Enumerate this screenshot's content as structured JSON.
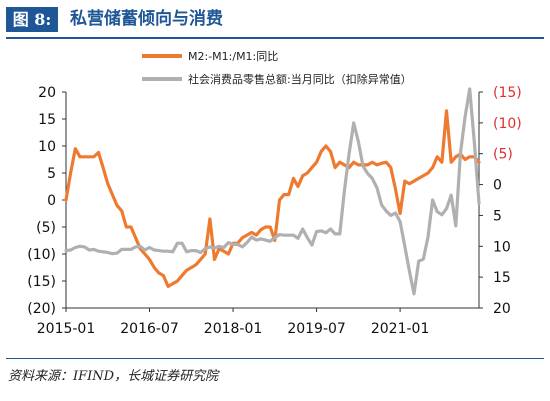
{
  "header": {
    "figure_label": "图 8:",
    "title": "私营储蓄倾向与消费"
  },
  "footer": {
    "source": "资料来源：IFIND，长城证券研究院"
  },
  "colors": {
    "brand": "#1f5796",
    "series_orange": "#ee7a30",
    "series_gray": "#b0b0b0",
    "negative_tick": "#e03030",
    "positive_tick": "#111111"
  },
  "chart_data": {
    "type": "line",
    "legend": [
      "M2:-M1:/M1:同比",
      "社会消费品零售总额:当月同比（扣除异常值）"
    ],
    "x_ticks": [
      "2015-01",
      "2016-07",
      "2018-01",
      "2019-07",
      "2021-01"
    ],
    "x_range": [
      "2015-01",
      "2022-06"
    ],
    "left_axis": {
      "ticks": [
        "20",
        "15",
        "10",
        "5",
        "0",
        "(5)",
        "(10)",
        "(15)",
        "(20)"
      ],
      "range": [
        -20,
        20
      ]
    },
    "right_axis": {
      "ticks": [
        "(15)",
        "(10)",
        "(5)",
        "0",
        "5",
        "10",
        "15",
        "20"
      ],
      "range": [
        -15,
        20
      ],
      "inverted": true
    },
    "series": [
      {
        "name": "M2:-M1:/M1:同比",
        "axis": "left",
        "points": [
          [
            "2015-01",
            0
          ],
          [
            "2015-02",
            5
          ],
          [
            "2015-03",
            9.5
          ],
          [
            "2015-04",
            8
          ],
          [
            "2015-05",
            8
          ],
          [
            "2015-06",
            8
          ],
          [
            "2015-07",
            8
          ],
          [
            "2015-08",
            8.8
          ],
          [
            "2015-09",
            6
          ],
          [
            "2015-10",
            3
          ],
          [
            "2015-11",
            1
          ],
          [
            "2015-12",
            -1
          ],
          [
            "2016-01",
            -2
          ],
          [
            "2016-02",
            -5
          ],
          [
            "2016-03",
            -5
          ],
          [
            "2016-04",
            -7
          ],
          [
            "2016-05",
            -9
          ],
          [
            "2016-06",
            -10
          ],
          [
            "2016-07",
            -11
          ],
          [
            "2016-08",
            -12.5
          ],
          [
            "2016-09",
            -13.5
          ],
          [
            "2016-10",
            -14
          ],
          [
            "2016-11",
            -16
          ],
          [
            "2016-12",
            -15.5
          ],
          [
            "2017-01",
            -15
          ],
          [
            "2017-02",
            -14
          ],
          [
            "2017-03",
            -13
          ],
          [
            "2017-04",
            -12.5
          ],
          [
            "2017-05",
            -12
          ],
          [
            "2017-06",
            -11
          ],
          [
            "2017-07",
            -10
          ],
          [
            "2017-08",
            -3.5
          ],
          [
            "2017-09",
            -11
          ],
          [
            "2017-10",
            -9
          ],
          [
            "2017-11",
            -9.5
          ],
          [
            "2017-12",
            -10
          ],
          [
            "2018-01",
            -8
          ],
          [
            "2018-02",
            -8
          ],
          [
            "2018-03",
            -7
          ],
          [
            "2018-04",
            -6.5
          ],
          [
            "2018-05",
            -6
          ],
          [
            "2018-06",
            -6.5
          ],
          [
            "2018-07",
            -5.5
          ],
          [
            "2018-08",
            -5
          ],
          [
            "2018-09",
            -5
          ],
          [
            "2018-10",
            -7.5
          ],
          [
            "2018-11",
            0
          ],
          [
            "2018-12",
            1
          ],
          [
            "2019-01",
            1
          ],
          [
            "2019-02",
            4
          ],
          [
            "2019-03",
            2.5
          ],
          [
            "2019-04",
            4.5
          ],
          [
            "2019-05",
            5
          ],
          [
            "2019-06",
            6
          ],
          [
            "2019-07",
            7
          ],
          [
            "2019-08",
            9
          ],
          [
            "2019-09",
            10
          ],
          [
            "2019-10",
            9
          ],
          [
            "2019-11",
            6
          ],
          [
            "2019-12",
            7
          ],
          [
            "2020-01",
            6.5
          ],
          [
            "2020-02",
            6
          ],
          [
            "2020-03",
            7
          ],
          [
            "2020-04",
            6.5
          ],
          [
            "2020-05",
            6.5
          ],
          [
            "2020-06",
            6.5
          ],
          [
            "2020-07",
            7
          ],
          [
            "2020-08",
            6.5
          ],
          [
            "2020-09",
            6.8
          ],
          [
            "2020-10",
            7
          ],
          [
            "2020-11",
            6
          ],
          [
            "2020-12",
            2
          ],
          [
            "2021-01",
            -2.5
          ],
          [
            "2021-02",
            3.5
          ],
          [
            "2021-03",
            3
          ],
          [
            "2021-04",
            3.5
          ],
          [
            "2021-05",
            4
          ],
          [
            "2021-06",
            4.5
          ],
          [
            "2021-07",
            5
          ],
          [
            "2021-08",
            6
          ],
          [
            "2021-09",
            8
          ],
          [
            "2021-10",
            7
          ],
          [
            "2021-11",
            16.5
          ],
          [
            "2021-12",
            7
          ],
          [
            "2022-01",
            8
          ],
          [
            "2022-02",
            8.5
          ],
          [
            "2022-03",
            7.5
          ],
          [
            "2022-04",
            8
          ],
          [
            "2022-05",
            8
          ],
          [
            "2022-06",
            7
          ]
        ]
      },
      {
        "name": "社会消费品零售总额:当月同比（扣除异常值）",
        "axis": "right",
        "points": [
          [
            "2015-01",
            10.7
          ],
          [
            "2015-02",
            10.6
          ],
          [
            "2015-03",
            10.2
          ],
          [
            "2015-04",
            10
          ],
          [
            "2015-05",
            10.1
          ],
          [
            "2015-06",
            10.6
          ],
          [
            "2015-07",
            10.5
          ],
          [
            "2015-08",
            10.8
          ],
          [
            "2015-09",
            10.9
          ],
          [
            "2015-10",
            11
          ],
          [
            "2015-11",
            11.2
          ],
          [
            "2015-12",
            11.1
          ],
          [
            "2016-01",
            10.5
          ],
          [
            "2016-02",
            10.5
          ],
          [
            "2016-03",
            10.5
          ],
          [
            "2016-04",
            10.1
          ],
          [
            "2016-05",
            10
          ],
          [
            "2016-06",
            10.6
          ],
          [
            "2016-07",
            10.2
          ],
          [
            "2016-08",
            10.6
          ],
          [
            "2016-09",
            10.7
          ],
          [
            "2016-10",
            10.8
          ],
          [
            "2016-11",
            10.8
          ],
          [
            "2016-12",
            10.9
          ],
          [
            "2017-01",
            9.5
          ],
          [
            "2017-02",
            9.5
          ],
          [
            "2017-03",
            10.9
          ],
          [
            "2017-04",
            10.7
          ],
          [
            "2017-05",
            10.7
          ],
          [
            "2017-06",
            11
          ],
          [
            "2017-07",
            10.4
          ],
          [
            "2017-08",
            10.1
          ],
          [
            "2017-09",
            10.3
          ],
          [
            "2017-10",
            10
          ],
          [
            "2017-11",
            10.2
          ],
          [
            "2017-12",
            9.4
          ],
          [
            "2018-01",
            9.7
          ],
          [
            "2018-02",
            9.7
          ],
          [
            "2018-03",
            10.1
          ],
          [
            "2018-04",
            9.4
          ],
          [
            "2018-05",
            8.5
          ],
          [
            "2018-06",
            9
          ],
          [
            "2018-07",
            8.8
          ],
          [
            "2018-08",
            9
          ],
          [
            "2018-09",
            9.2
          ],
          [
            "2018-10",
            8.6
          ],
          [
            "2018-11",
            8.1
          ],
          [
            "2018-12",
            8.2
          ],
          [
            "2019-01",
            8.2
          ],
          [
            "2019-02",
            8.2
          ],
          [
            "2019-03",
            8.7
          ],
          [
            "2019-04",
            7.2
          ],
          [
            "2019-05",
            8.6
          ],
          [
            "2019-06",
            9.8
          ],
          [
            "2019-07",
            7.6
          ],
          [
            "2019-08",
            7.5
          ],
          [
            "2019-09",
            7.8
          ],
          [
            "2019-10",
            7.2
          ],
          [
            "2019-11",
            8
          ],
          [
            "2019-12",
            8
          ],
          [
            "2020-01",
            1
          ],
          [
            "2020-02",
            -5
          ],
          [
            "2020-03",
            -10
          ],
          [
            "2020-04",
            -7
          ],
          [
            "2020-05",
            -3
          ],
          [
            "2020-06",
            -1.8
          ],
          [
            "2020-07",
            -1
          ],
          [
            "2020-08",
            0.5
          ],
          [
            "2020-09",
            3.3
          ],
          [
            "2020-10",
            4.3
          ],
          [
            "2020-11",
            5
          ],
          [
            "2020-12",
            4.6
          ],
          [
            "2021-01",
            6
          ],
          [
            "2021-02",
            10
          ],
          [
            "2021-03",
            14
          ],
          [
            "2021-04",
            17.7
          ],
          [
            "2021-05",
            12.4
          ],
          [
            "2021-06",
            12.1
          ],
          [
            "2021-07",
            8.5
          ],
          [
            "2021-08",
            2.5
          ],
          [
            "2021-09",
            4.4
          ],
          [
            "2021-10",
            4.9
          ],
          [
            "2021-11",
            3.9
          ],
          [
            "2021-12",
            1.7
          ],
          [
            "2022-01",
            6.7
          ],
          [
            "2022-02",
            -5
          ],
          [
            "2022-03",
            -11
          ],
          [
            "2022-04",
            -15.5
          ],
          [
            "2022-05",
            -6.7
          ],
          [
            "2022-06",
            3
          ]
        ]
      }
    ]
  }
}
